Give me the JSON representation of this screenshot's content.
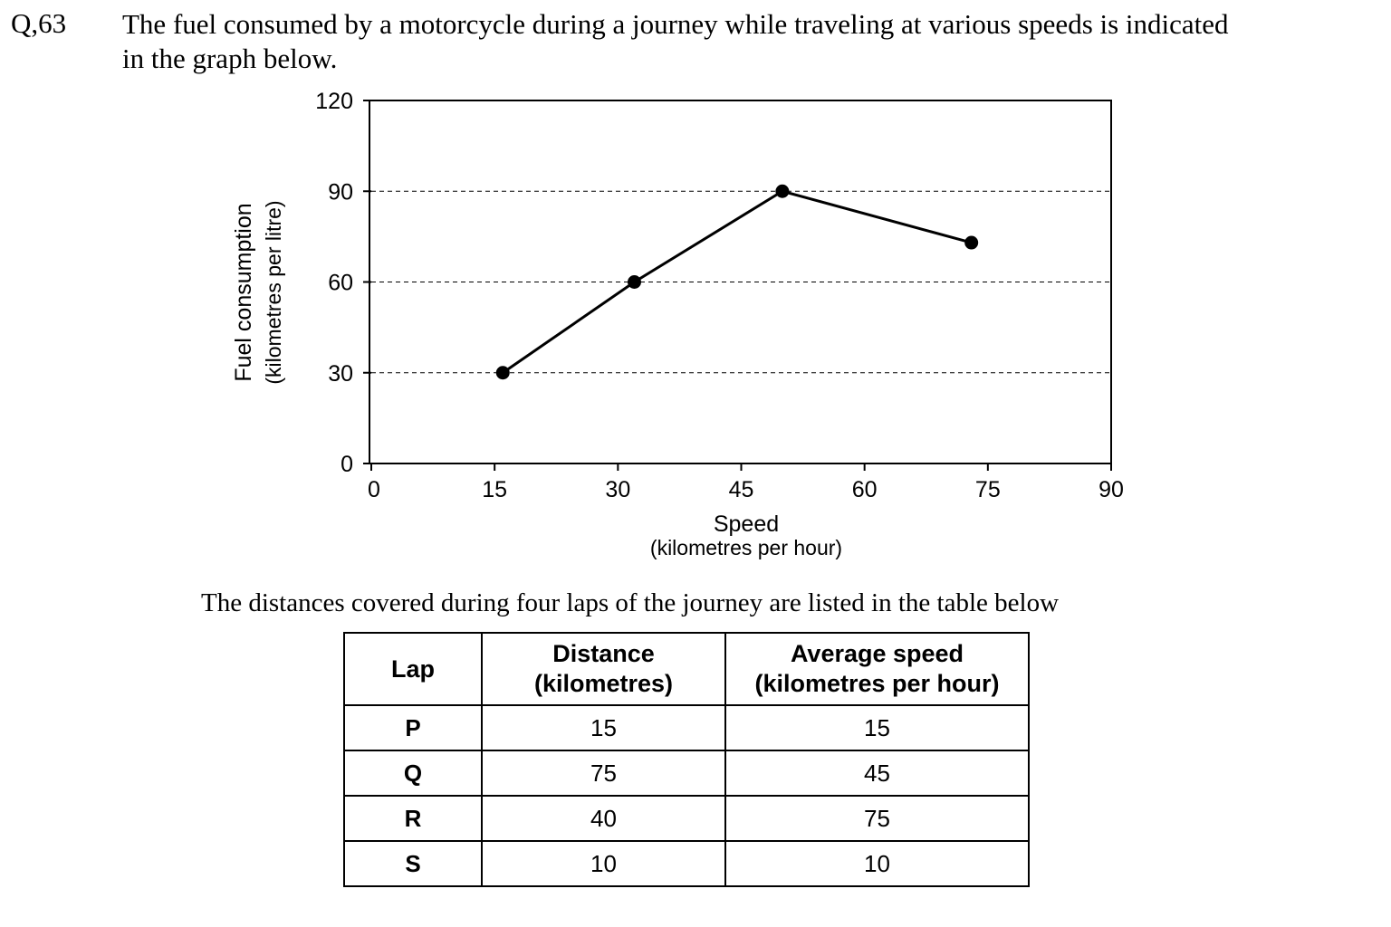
{
  "question": {
    "number": "Q,63",
    "text_line1": "The fuel consumed by a motorcycle during a journey while traveling at various speeds is indicated",
    "text_line2": "in the graph below."
  },
  "chart_data": {
    "type": "line",
    "title": "",
    "xlabel": "Speed",
    "xlabel_sub": "(kilometres per hour)",
    "ylabel": "Fuel consumption",
    "ylabel_sub": "(kilometres per litre)",
    "xlim": [
      0,
      90
    ],
    "ylim": [
      0,
      120
    ],
    "xticks": [
      0,
      15,
      30,
      45,
      60,
      75,
      90
    ],
    "yticks": [
      0,
      30,
      60,
      90,
      120
    ],
    "dashed_gridlines_y": [
      30,
      60,
      90
    ],
    "series": [
      {
        "x": [
          16,
          32,
          50,
          73
        ],
        "y": [
          30,
          60,
          90,
          73
        ]
      }
    ]
  },
  "table_intro": "The distances covered during four laps of the journey are listed in the table below",
  "table": {
    "headers": [
      {
        "line1": "Lap",
        "line2": ""
      },
      {
        "line1": "Distance",
        "line2": "(kilometres)"
      },
      {
        "line1": "Average speed",
        "line2": "(kilometres per hour)"
      }
    ],
    "rows": [
      [
        "P",
        "15",
        "15"
      ],
      [
        "Q",
        "75",
        "45"
      ],
      [
        "R",
        "40",
        "75"
      ],
      [
        "S",
        "10",
        "10"
      ]
    ]
  }
}
